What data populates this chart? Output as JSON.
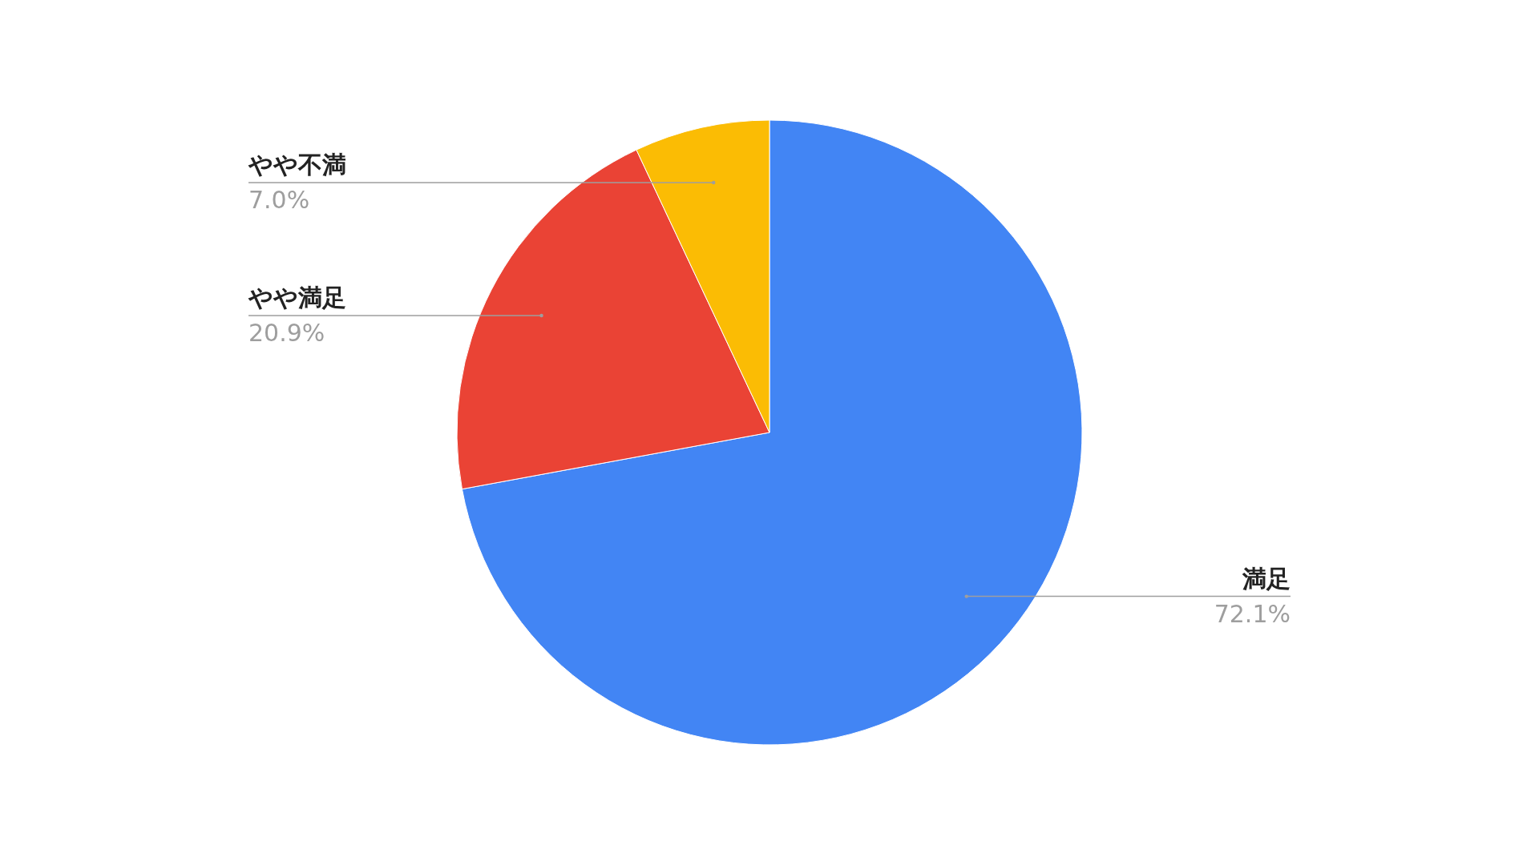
{
  "chart_data": {
    "type": "pie",
    "categories": [
      "満足",
      "やや満足",
      "やや不満"
    ],
    "values": [
      72.1,
      20.9,
      7.0
    ],
    "colors": [
      "#4285f4",
      "#ea4335",
      "#fbbc04"
    ],
    "value_labels": [
      "72.1%",
      "20.9%",
      "7.0%"
    ]
  }
}
